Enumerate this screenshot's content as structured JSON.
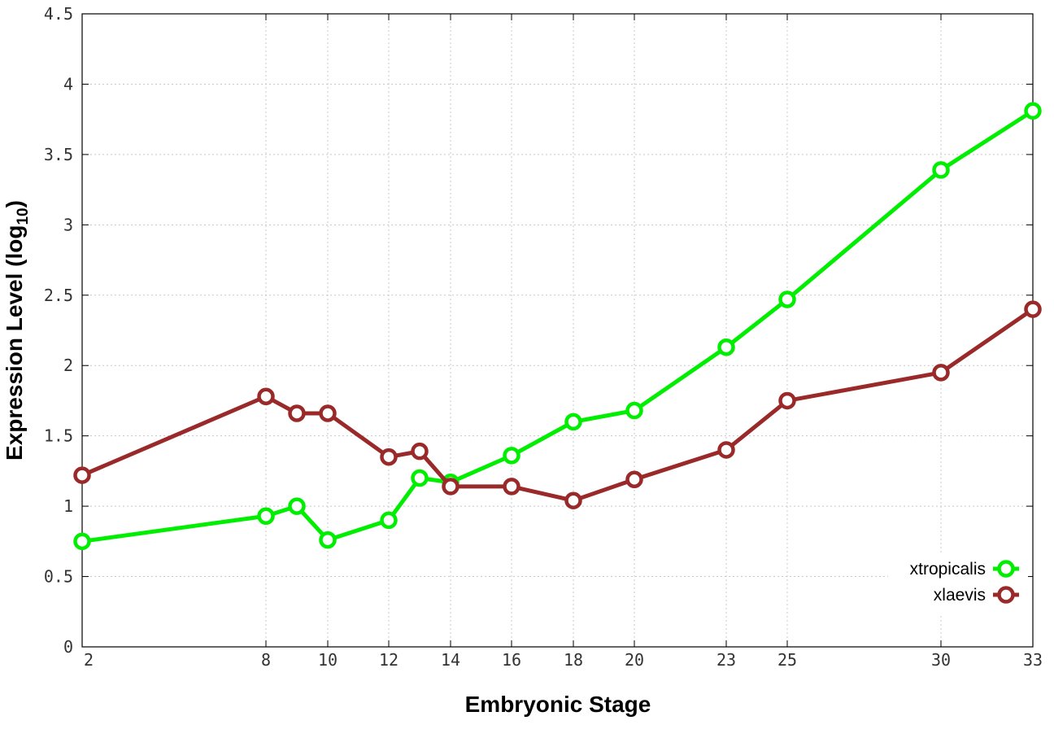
{
  "chart_data": {
    "type": "line",
    "xlabel": "Embryonic Stage",
    "ylabel": {
      "main": "Expression Level (log",
      "sub": "10",
      "close": ")"
    },
    "x_categories": [
      "2",
      "8",
      "9",
      "10",
      "12",
      "13",
      "14",
      "16",
      "18",
      "20",
      "23",
      "25",
      "30",
      "33"
    ],
    "x_tick_labels": [
      "2",
      "8",
      "10",
      "12",
      "14",
      "16",
      "18",
      "20",
      "23",
      "25",
      "30",
      "33"
    ],
    "y_ticks": [
      "0",
      "0.5",
      "1",
      "1.5",
      "2",
      "2.5",
      "3",
      "3.5",
      "4",
      "4.5"
    ],
    "ylim": [
      0,
      4.5
    ],
    "grid": true,
    "legend_position": "bottom-right",
    "series": [
      {
        "name": "xtropicalis",
        "color": "#00ee00",
        "x": [
          2,
          8,
          9,
          10,
          12,
          13,
          14,
          16,
          18,
          20,
          23,
          25,
          30,
          33
        ],
        "values": [
          0.75,
          0.93,
          1.0,
          0.76,
          0.9,
          1.2,
          1.17,
          1.36,
          1.6,
          1.68,
          2.13,
          2.47,
          3.39,
          3.81
        ]
      },
      {
        "name": "xlaevis",
        "color": "#9a2929",
        "x": [
          2,
          8,
          9,
          10,
          12,
          13,
          14,
          16,
          18,
          20,
          23,
          25,
          30,
          33
        ],
        "values": [
          1.22,
          1.78,
          1.66,
          1.66,
          1.35,
          1.39,
          1.14,
          1.14,
          1.04,
          1.19,
          1.4,
          1.75,
          1.95,
          2.4
        ]
      }
    ]
  }
}
